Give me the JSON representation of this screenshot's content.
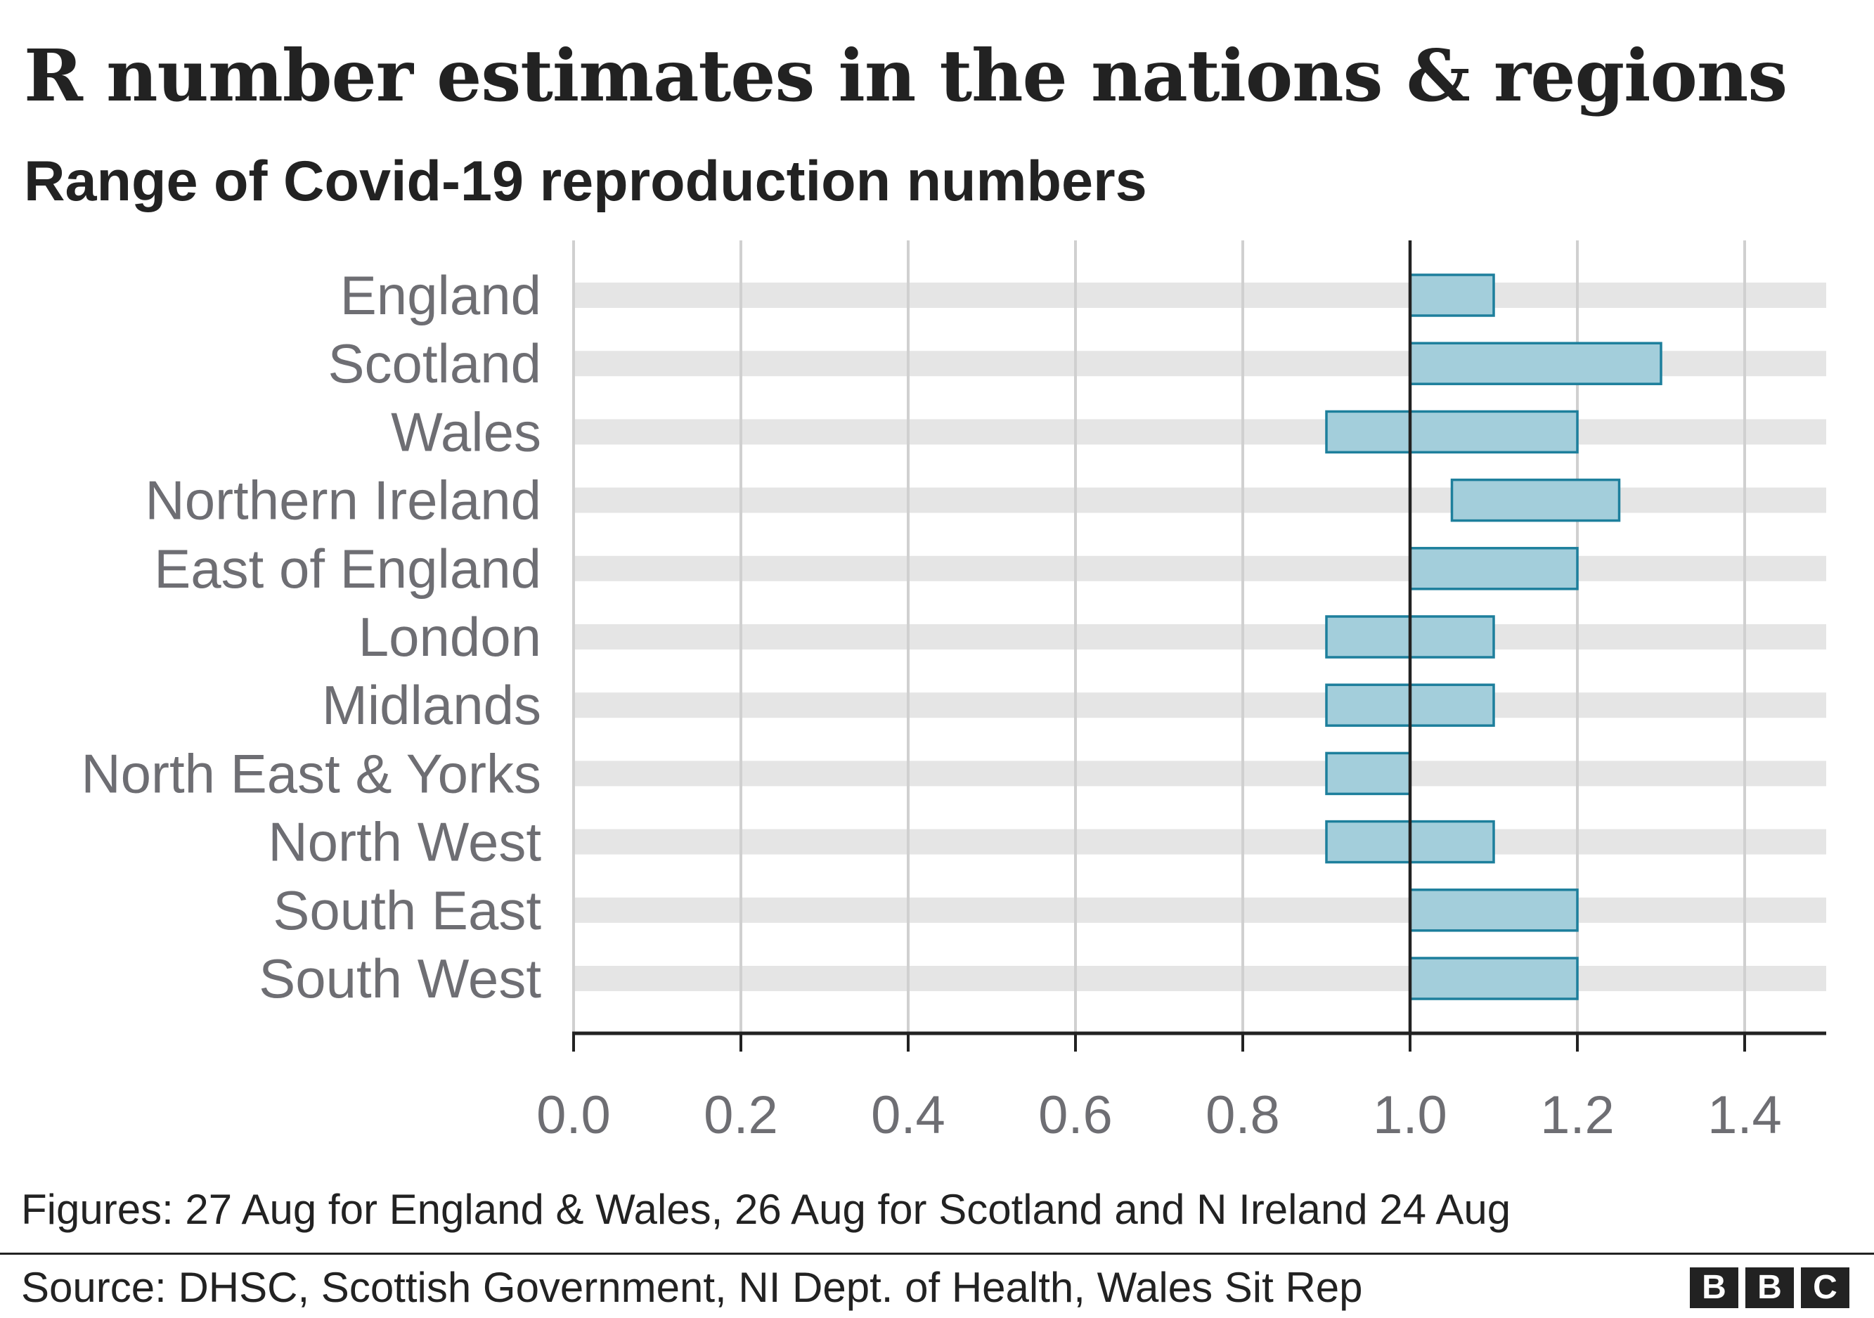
{
  "title": "R number estimates in the nations & regions",
  "subtitle": "Range of Covid-19 reproduction numbers",
  "chart_data": {
    "type": "bar",
    "subtype": "floating-range",
    "categories": [
      "England",
      "Scotland",
      "Wales",
      "Northern Ireland",
      "East of England",
      "London",
      "Midlands",
      "North East & Yorks",
      "North West",
      "South East",
      "South West"
    ],
    "series": [
      {
        "name": "R range",
        "low": [
          1.0,
          1.0,
          0.9,
          1.05,
          1.0,
          0.9,
          0.9,
          0.9,
          0.9,
          1.0,
          1.0
        ],
        "high": [
          1.1,
          1.3,
          1.2,
          1.25,
          1.2,
          1.1,
          1.1,
          1.0,
          1.1,
          1.2,
          1.2
        ]
      }
    ],
    "xlim": [
      0,
      1.5
    ],
    "xticks": [
      0.0,
      0.2,
      0.4,
      0.6,
      0.8,
      1.0,
      1.2,
      1.4
    ],
    "xtick_labels": [
      "0.0",
      "0.2",
      "0.4",
      "0.6",
      "0.8",
      "1.0",
      "1.2",
      "1.4"
    ],
    "reference_line": 1.0,
    "xlabel": "",
    "ylabel": "",
    "grid": true,
    "colors": {
      "bar_fill": "#a3cedb",
      "bar_stroke": "#1d7f9c",
      "row_band": "#e5e5e5",
      "grid": "#d0d0d0",
      "axis": "#222222",
      "label": "#6e6e73"
    }
  },
  "note": "Figures: 27 Aug for England & Wales, 26 Aug for Scotland and N Ireland 24 Aug",
  "source": "Source: DHSC, Scottish Government, NI Dept. of Health, Wales Sit Rep",
  "logo": {
    "letters": [
      "B",
      "B",
      "C"
    ]
  }
}
